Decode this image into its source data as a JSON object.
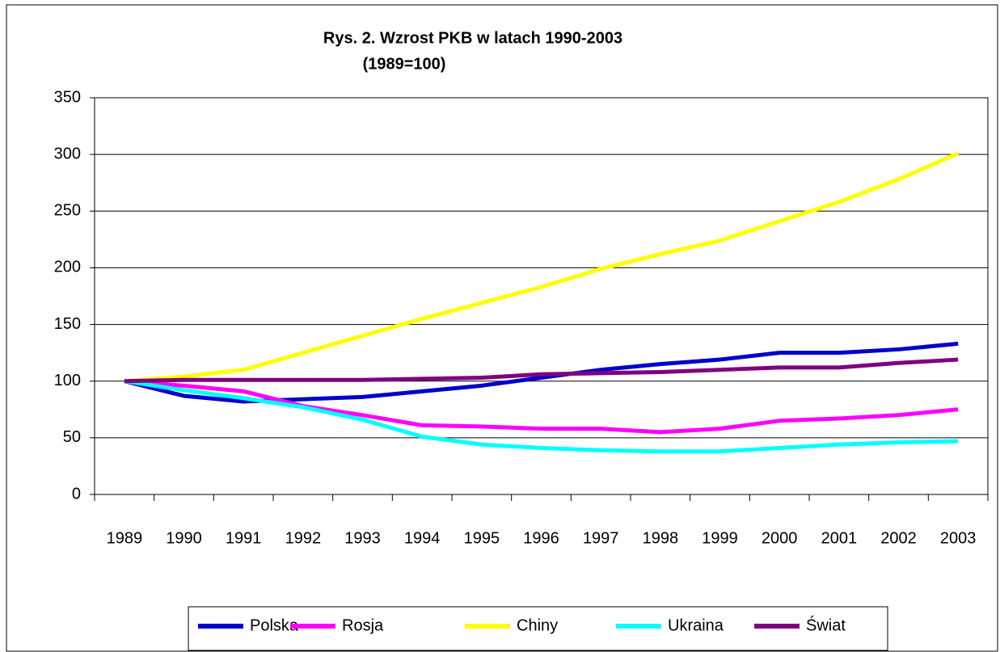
{
  "chart_data": {
    "type": "line",
    "title": "Rys. 2. Wzrost PKB w latach 1990-2003",
    "subtitle": "(1989=100)",
    "categories": [
      "1989",
      "1990",
      "1991",
      "1992",
      "1993",
      "1994",
      "1995",
      "1996",
      "1997",
      "1998",
      "1999",
      "2000",
      "2001",
      "2002",
      "2003"
    ],
    "series": [
      {
        "name": "Polska",
        "color": "#0000cc",
        "values": [
          100,
          87,
          82,
          84,
          86,
          91,
          96,
          103,
          110,
          115,
          119,
          125,
          125,
          128,
          133
        ]
      },
      {
        "name": "Rosja",
        "color": "#ff00ff",
        "values": [
          100,
          96,
          91,
          78,
          70,
          61,
          60,
          58,
          58,
          55,
          58,
          65,
          67,
          70,
          75
        ]
      },
      {
        "name": "Chiny",
        "color": "#ffff00",
        "values": [
          100,
          104,
          110,
          125,
          140,
          155,
          169,
          183,
          199,
          212,
          224,
          241,
          258,
          278,
          301
        ]
      },
      {
        "name": "Ukraina",
        "color": "#00ffff",
        "values": [
          100,
          92,
          85,
          77,
          66,
          51,
          44,
          41,
          39,
          38,
          38,
          41,
          44,
          46,
          47
        ]
      },
      {
        "name": "Świat",
        "color": "#800080",
        "values": [
          100,
          101,
          101,
          101,
          101,
          102,
          103,
          106,
          107,
          108,
          110,
          112,
          112,
          116,
          119
        ]
      }
    ],
    "ylim": [
      0,
      350
    ],
    "yticks": [
      0,
      50,
      100,
      150,
      200,
      250,
      300,
      350
    ],
    "grid": true,
    "legend": "bottom"
  }
}
